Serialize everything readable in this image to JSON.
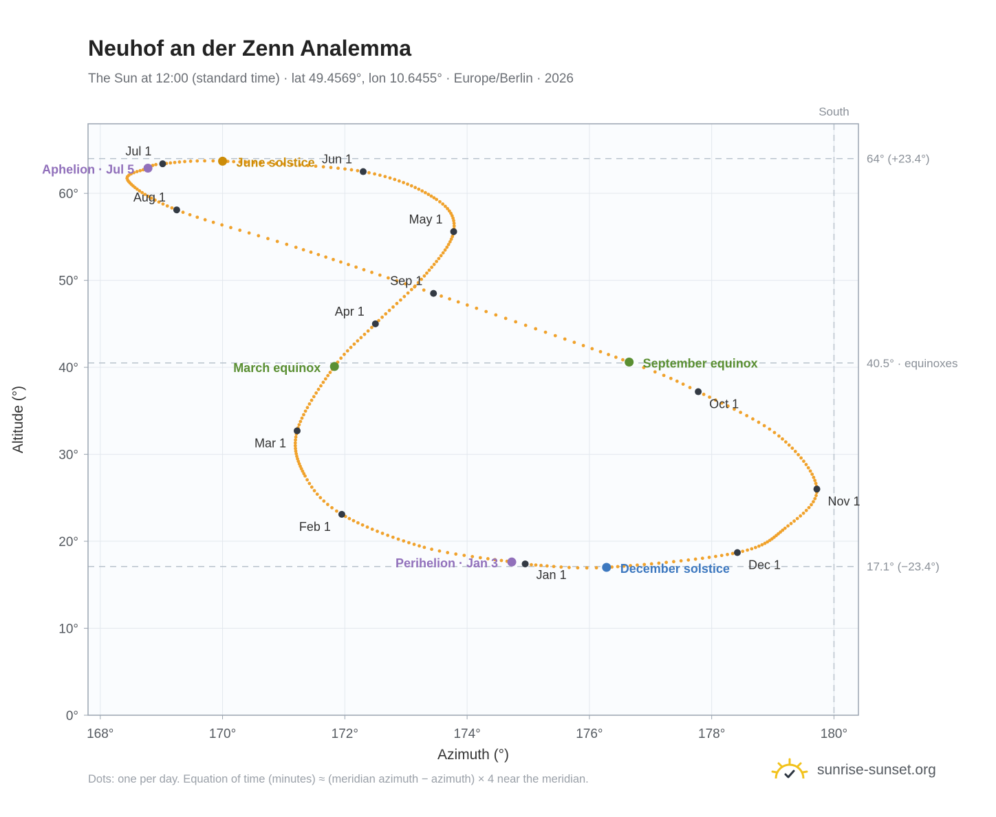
{
  "header": {
    "title": "Neuhof an der Zenn Analemma",
    "subtitle": "The Sun at 12:00 (standard time) · lat 49.4569°, lon 10.6455° · Europe/Berlin · 2026"
  },
  "footer": {
    "note": "Dots: one per day. Equation of time (minutes) ≈ (meridian azimuth − azimuth) × 4 near the meridian.",
    "brand": "sunrise-sunset.org",
    "brand_icon": "sun-logo-icon"
  },
  "colors": {
    "curve": "#f0a22c",
    "month_marker": "#333a44",
    "june_solstice": "#cc8c08",
    "december_solstice": "#3d78bf",
    "equinox": "#5a8f32",
    "apsis": "#9170bb",
    "reference_line": "#b8c2cc",
    "plot_background": "#fafcfe",
    "grid": "#e3e8ee"
  },
  "chart_data": {
    "type": "scatter",
    "xlabel": "Azimuth (°)",
    "ylabel": "Altitude (°)",
    "xlim": [
      167.8,
      180.4
    ],
    "ylim": [
      0,
      68
    ],
    "x_ticks": [
      {
        "value": 168,
        "label": "168°"
      },
      {
        "value": 170,
        "label": "170°"
      },
      {
        "value": 172,
        "label": "172°"
      },
      {
        "value": 174,
        "label": "174°"
      },
      {
        "value": 176,
        "label": "176°"
      },
      {
        "value": 178,
        "label": "178°"
      },
      {
        "value": 180,
        "label": "180°"
      }
    ],
    "y_ticks": [
      {
        "value": 0,
        "label": "0°"
      },
      {
        "value": 10,
        "label": "10°"
      },
      {
        "value": 20,
        "label": "20°"
      },
      {
        "value": 30,
        "label": "30°"
      },
      {
        "value": 40,
        "label": "40°"
      },
      {
        "value": 50,
        "label": "50°"
      },
      {
        "value": 60,
        "label": "60°"
      }
    ],
    "grid": true,
    "reference_lines": {
      "horizontal": [
        {
          "value": 64.0,
          "label": "64° (+23.4°)"
        },
        {
          "value": 40.5,
          "label": "40.5° · equinoxes"
        },
        {
          "value": 17.1,
          "label": "17.1° (−23.4°)"
        }
      ],
      "vertical": [
        {
          "value": 180,
          "label": "South"
        }
      ]
    },
    "daily_series": {
      "interpolation": "daily",
      "anchors": [
        {
          "date": "2026-01-01",
          "x": 174.95,
          "y": 17.4
        },
        {
          "date": "2026-01-03",
          "x": 174.73,
          "y": 17.62
        },
        {
          "date": "2026-01-15",
          "x": 173.3,
          "y": 19.3
        },
        {
          "date": "2026-02-01",
          "x": 171.95,
          "y": 23.1
        },
        {
          "date": "2026-02-12",
          "x": 171.35,
          "y": 27.5
        },
        {
          "date": "2026-03-01",
          "x": 171.22,
          "y": 32.7
        },
        {
          "date": "2026-03-20",
          "x": 171.83,
          "y": 40.1
        },
        {
          "date": "2026-04-01",
          "x": 172.5,
          "y": 45.0
        },
        {
          "date": "2026-04-15",
          "x": 173.3,
          "y": 50.5
        },
        {
          "date": "2026-05-01",
          "x": 173.78,
          "y": 55.6
        },
        {
          "date": "2026-05-14",
          "x": 173.5,
          "y": 59.3
        },
        {
          "date": "2026-06-01",
          "x": 172.3,
          "y": 62.5
        },
        {
          "date": "2026-06-21",
          "x": 170.0,
          "y": 63.7
        },
        {
          "date": "2026-07-01",
          "x": 169.02,
          "y": 63.4
        },
        {
          "date": "2026-07-05",
          "x": 168.78,
          "y": 62.9
        },
        {
          "date": "2026-07-15",
          "x": 168.45,
          "y": 61.5
        },
        {
          "date": "2026-08-01",
          "x": 169.25,
          "y": 58.1
        },
        {
          "date": "2026-08-15",
          "x": 171.2,
          "y": 53.8
        },
        {
          "date": "2026-09-01",
          "x": 173.45,
          "y": 48.5
        },
        {
          "date": "2026-09-23",
          "x": 176.65,
          "y": 40.6
        },
        {
          "date": "2026-10-01",
          "x": 177.78,
          "y": 37.2
        },
        {
          "date": "2026-10-15",
          "x": 179.1,
          "y": 32.1
        },
        {
          "date": "2026-11-01",
          "x": 179.72,
          "y": 26.0
        },
        {
          "date": "2026-11-15",
          "x": 179.2,
          "y": 21.5
        },
        {
          "date": "2026-12-01",
          "x": 178.42,
          "y": 18.7
        },
        {
          "date": "2026-12-21",
          "x": 176.28,
          "y": 17.0
        },
        {
          "date": "2026-12-31",
          "x": 175.05,
          "y": 17.3
        }
      ]
    },
    "month_markers": [
      {
        "label": "Jan 1",
        "x": 174.95,
        "y": 17.4,
        "label_dx": 16,
        "label_dy": 22,
        "anchor": "start"
      },
      {
        "label": "Feb 1",
        "x": 171.95,
        "y": 23.1,
        "label_dx": -16,
        "label_dy": 24,
        "anchor": "end"
      },
      {
        "label": "Mar 1",
        "x": 171.22,
        "y": 32.7,
        "label_dx": -16,
        "label_dy": 24,
        "anchor": "end"
      },
      {
        "label": "Apr 1",
        "x": 172.5,
        "y": 45.0,
        "label_dx": -16,
        "label_dy": -12,
        "anchor": "end"
      },
      {
        "label": "May 1",
        "x": 173.78,
        "y": 55.6,
        "label_dx": -16,
        "label_dy": -12,
        "anchor": "end"
      },
      {
        "label": "Jun 1",
        "x": 172.3,
        "y": 62.5,
        "label_dx": -16,
        "label_dy": -12,
        "anchor": "end"
      },
      {
        "label": "Jul 1",
        "x": 169.02,
        "y": 63.4,
        "label_dx": -16,
        "label_dy": -12,
        "anchor": "end"
      },
      {
        "label": "Aug 1",
        "x": 169.25,
        "y": 58.1,
        "label_dx": -16,
        "label_dy": -12,
        "anchor": "end"
      },
      {
        "label": "Sep 1",
        "x": 173.45,
        "y": 48.5,
        "label_dx": -16,
        "label_dy": -12,
        "anchor": "end"
      },
      {
        "label": "Oct 1",
        "x": 177.78,
        "y": 37.2,
        "label_dx": 16,
        "label_dy": 24,
        "anchor": "start"
      },
      {
        "label": "Nov 1",
        "x": 179.72,
        "y": 26.0,
        "label_dx": 16,
        "label_dy": 24,
        "anchor": "start"
      },
      {
        "label": "Dec 1",
        "x": 178.42,
        "y": 18.7,
        "label_dx": 16,
        "label_dy": 24,
        "anchor": "start"
      }
    ],
    "events": [
      {
        "label": "June solstice",
        "x": 170.0,
        "y": 63.7,
        "color": "#cc8c08",
        "label_dx": 20,
        "label_dy": 8,
        "anchor": "start"
      },
      {
        "label": "December solstice",
        "x": 176.28,
        "y": 17.0,
        "color": "#3d78bf",
        "label_dx": 20,
        "label_dy": 8,
        "anchor": "start"
      },
      {
        "label": "March equinox",
        "x": 171.83,
        "y": 40.1,
        "color": "#5a8f32",
        "label_dx": -20,
        "label_dy": 8,
        "anchor": "end"
      },
      {
        "label": "September equinox",
        "x": 176.65,
        "y": 40.6,
        "color": "#5a8f32",
        "label_dx": 20,
        "label_dy": 8,
        "anchor": "start"
      },
      {
        "label": "Aphelion · Jul 5",
        "x": 168.78,
        "y": 62.9,
        "color": "#9170bb",
        "label_dx": -20,
        "label_dy": 8,
        "anchor": "end"
      },
      {
        "label": "Perihelion · Jan 3",
        "x": 174.73,
        "y": 17.62,
        "color": "#9170bb",
        "label_dx": -20,
        "label_dy": 8,
        "anchor": "end"
      }
    ]
  }
}
